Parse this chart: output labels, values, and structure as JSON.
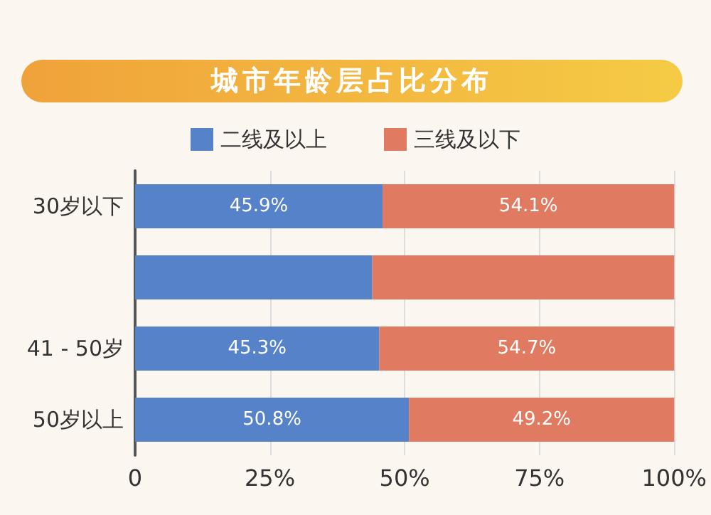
{
  "chart_data": {
    "type": "bar",
    "title": "城市年龄层占比分布",
    "orientation": "horizontal",
    "stacked": true,
    "categories": [
      "30岁以下",
      null,
      "41 - 50岁",
      "50岁以上"
    ],
    "series": [
      {
        "name": "二线及以上",
        "color": "#5582c8",
        "values": [
          45.9,
          44,
          45.3,
          50.8
        ],
        "value_labels": [
          "45.9%",
          null,
          "45.3%",
          "50.8%"
        ]
      },
      {
        "name": "三线及以下",
        "color": "#e07a60",
        "values": [
          54.1,
          56,
          54.7,
          49.2
        ],
        "value_labels": [
          "54.1%",
          null,
          "54.7%",
          "49.2%"
        ]
      }
    ],
    "xlim": [
      0,
      100
    ],
    "xticks": [
      {
        "value": 0,
        "label": "0"
      },
      {
        "value": 25,
        "label": "25%"
      },
      {
        "value": 50,
        "label": "50%"
      },
      {
        "value": 75,
        "label": "75%"
      },
      {
        "value": 100,
        "label": "100%"
      }
    ],
    "grid": "x",
    "legend": "top"
  }
}
